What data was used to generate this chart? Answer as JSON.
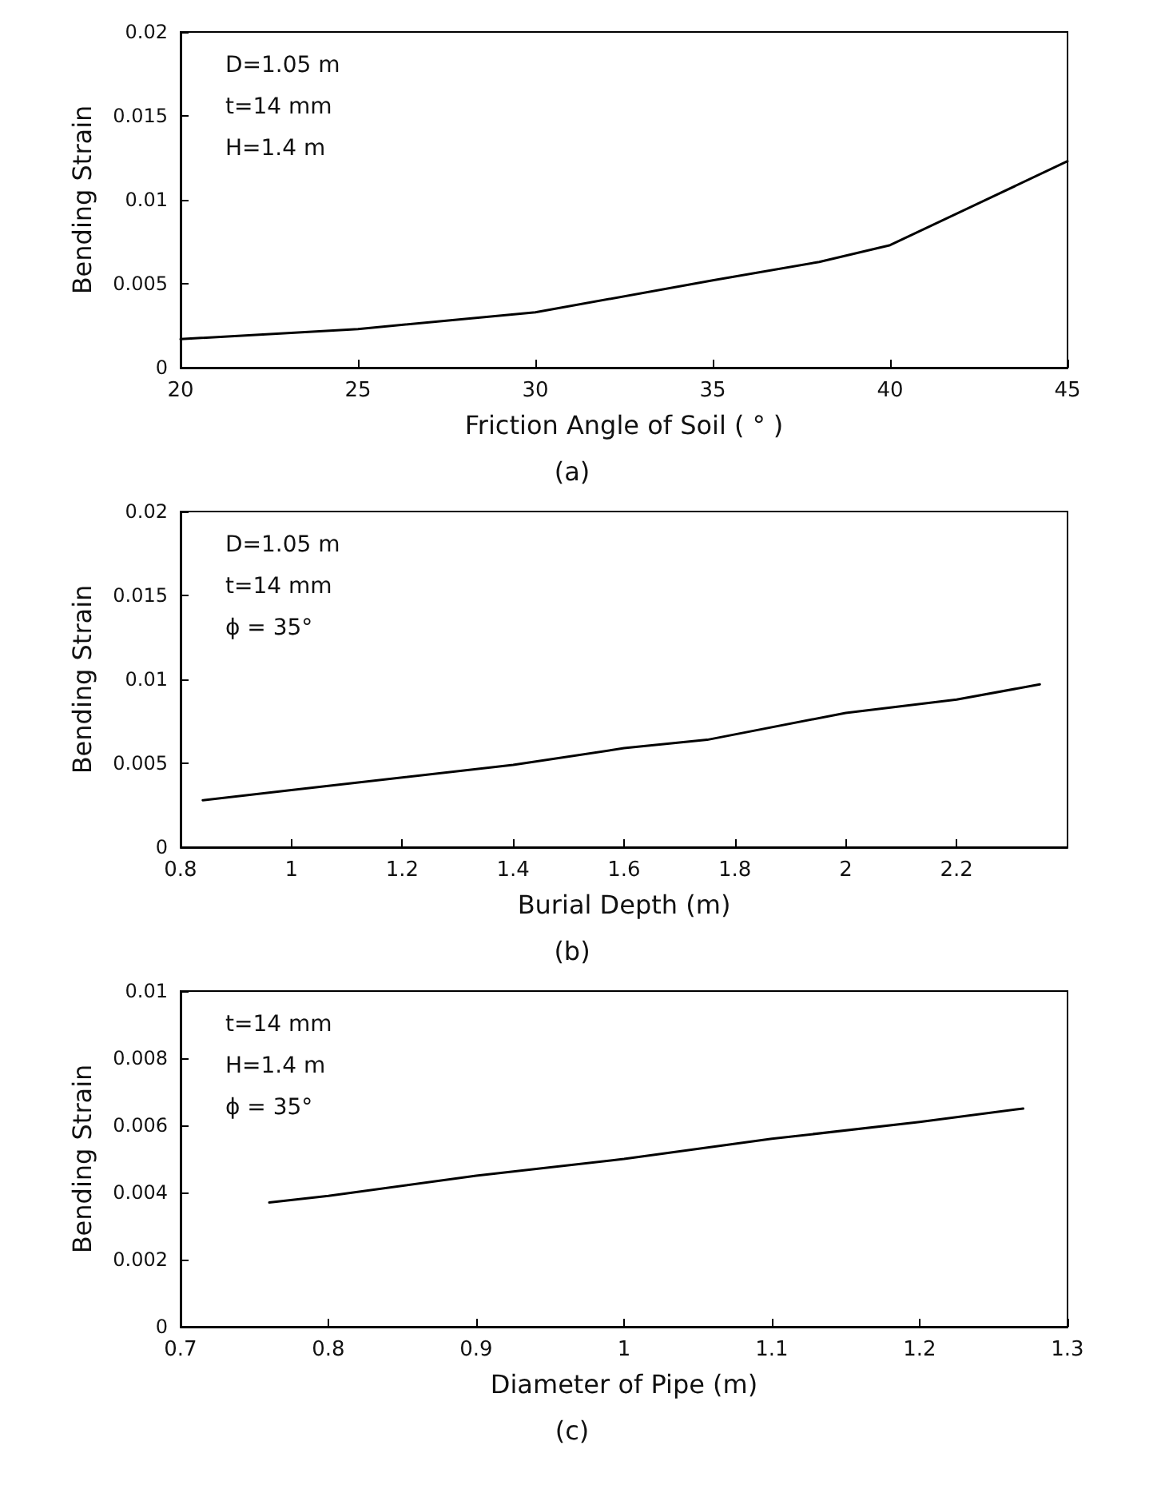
{
  "chart_data": [
    {
      "type": "line",
      "title": "(a)",
      "xlabel": "Friction Angle of Soil ( ° )",
      "ylabel": "Bending Strain",
      "x": [
        20,
        25,
        30,
        35,
        38,
        40,
        45
      ],
      "series": [
        {
          "color": "#000000",
          "values": [
            0.0017,
            0.0023,
            0.0033,
            0.0052,
            0.0063,
            0.0073,
            0.0123
          ]
        }
      ],
      "xlim": [
        20,
        45
      ],
      "xticks": [
        20,
        25,
        30,
        35,
        40,
        45
      ],
      "ylim": [
        0,
        0.02
      ],
      "yticks": [
        0,
        0.005,
        0.01,
        0.015,
        0.02
      ],
      "annotations": [
        "D=1.05 m",
        "t=14 mm",
        "H=1.4 m"
      ],
      "marker": "none",
      "line_style": "solid"
    },
    {
      "type": "line",
      "title": "(b)",
      "xlabel": "Burial Depth (m)",
      "ylabel": "Bending Strain",
      "x": [
        0.84,
        1,
        1.4,
        1.6,
        1.75,
        2,
        2.2,
        2.35
      ],
      "series": [
        {
          "color": "#000000",
          "values": [
            0.0028,
            0.0034,
            0.0049,
            0.0059,
            0.0064,
            0.008,
            0.0088,
            0.0097
          ]
        }
      ],
      "xlim": [
        0.8,
        2.4
      ],
      "xticks": [
        0.8,
        1,
        1.2,
        1.4,
        1.6,
        1.8,
        2,
        2.2
      ],
      "ylim": [
        0,
        0.02
      ],
      "yticks": [
        0,
        0.005,
        0.01,
        0.015,
        0.02
      ],
      "annotations": [
        "D=1.05 m",
        "t=14 mm",
        "ϕ = 35°"
      ],
      "marker": "none",
      "line_style": "solid"
    },
    {
      "type": "line",
      "title": "(c)",
      "xlabel": "Diameter of Pipe (m)",
      "ylabel": "Bending Strain",
      "x": [
        0.76,
        0.8,
        0.9,
        1,
        1.1,
        1.2,
        1.27
      ],
      "series": [
        {
          "color": "#000000",
          "values": [
            0.0037,
            0.0039,
            0.0045,
            0.005,
            0.0056,
            0.0061,
            0.0065
          ]
        }
      ],
      "xlim": [
        0.7,
        1.3
      ],
      "xticks": [
        0.7,
        0.8,
        0.9,
        1,
        1.1,
        1.2,
        1.3
      ],
      "ylim": [
        0,
        0.01
      ],
      "yticks": [
        0,
        0.002,
        0.004,
        0.006,
        0.008,
        0.01
      ],
      "annotations": [
        "t=14 mm",
        "H=1.4 m",
        "ϕ = 35°"
      ],
      "marker": "none",
      "line_style": "solid"
    }
  ]
}
